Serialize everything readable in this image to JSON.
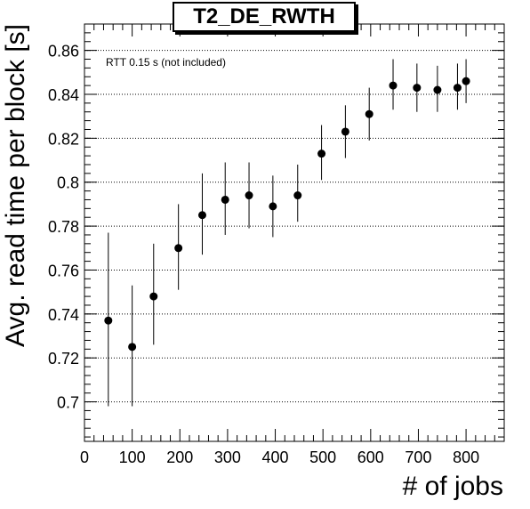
{
  "chart_data": {
    "type": "scatter",
    "title": "T2_DE_RWTH",
    "xlabel": "# of jobs",
    "ylabel": "Avg. read time per block [s]",
    "annotation": "RTT 0.15 s (not included)",
    "xlim": [
      0,
      880
    ],
    "ylim": [
      0.682,
      0.872
    ],
    "x_ticks": [
      0,
      100,
      200,
      300,
      400,
      500,
      600,
      700,
      800
    ],
    "y_ticks": [
      0.7,
      0.72,
      0.74,
      0.76,
      0.78,
      0.8,
      0.82,
      0.84,
      0.86
    ],
    "y_tick_labels": [
      "0.7",
      "0.72",
      "0.74",
      "0.76",
      "0.78",
      "0.8",
      "0.82",
      "0.84",
      "0.86"
    ],
    "grid": "horizontal dotted",
    "points": [
      {
        "x": 50,
        "y": 0.737,
        "ylow": 0.698,
        "yhigh": 0.777
      },
      {
        "x": 100,
        "y": 0.725,
        "ylow": 0.698,
        "yhigh": 0.753
      },
      {
        "x": 145,
        "y": 0.748,
        "ylow": 0.726,
        "yhigh": 0.772
      },
      {
        "x": 197,
        "y": 0.77,
        "ylow": 0.751,
        "yhigh": 0.79
      },
      {
        "x": 247,
        "y": 0.785,
        "ylow": 0.767,
        "yhigh": 0.804
      },
      {
        "x": 295,
        "y": 0.792,
        "ylow": 0.776,
        "yhigh": 0.809
      },
      {
        "x": 345,
        "y": 0.794,
        "ylow": 0.779,
        "yhigh": 0.809
      },
      {
        "x": 395,
        "y": 0.789,
        "ylow": 0.775,
        "yhigh": 0.803
      },
      {
        "x": 447,
        "y": 0.794,
        "ylow": 0.782,
        "yhigh": 0.808
      },
      {
        "x": 497,
        "y": 0.813,
        "ylow": 0.801,
        "yhigh": 0.826
      },
      {
        "x": 547,
        "y": 0.823,
        "ylow": 0.811,
        "yhigh": 0.835
      },
      {
        "x": 597,
        "y": 0.831,
        "ylow": 0.819,
        "yhigh": 0.843
      },
      {
        "x": 647,
        "y": 0.844,
        "ylow": 0.833,
        "yhigh": 0.856
      },
      {
        "x": 697,
        "y": 0.843,
        "ylow": 0.832,
        "yhigh": 0.854
      },
      {
        "x": 740,
        "y": 0.842,
        "ylow": 0.832,
        "yhigh": 0.853
      },
      {
        "x": 782,
        "y": 0.843,
        "ylow": 0.833,
        "yhigh": 0.854
      },
      {
        "x": 800,
        "y": 0.846,
        "ylow": 0.836,
        "yhigh": 0.856
      }
    ]
  }
}
